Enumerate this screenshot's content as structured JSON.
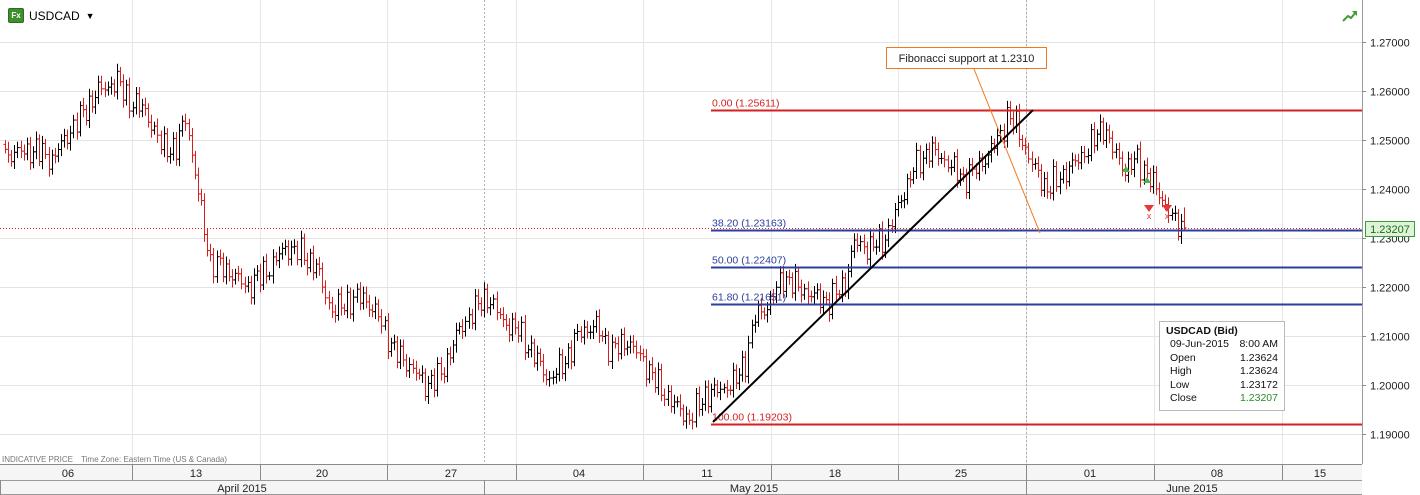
{
  "symbol": "USDCAD",
  "indicative_label": "INDICATIVE PRICE",
  "timezone_label": "Time Zone: Eastern Time (US & Canada)",
  "current_price": "1.23207",
  "callout_text": "Fibonacci support at 1.2310",
  "info_box": {
    "title": "USDCAD (Bid)",
    "date": "09-Jun-2015",
    "time": "8:00 AM",
    "rows": [
      {
        "label": "Open",
        "value": "1.23624"
      },
      {
        "label": "High",
        "value": "1.23624"
      },
      {
        "label": "Low",
        "value": "1.23172"
      },
      {
        "label": "Close",
        "value": "1.23207"
      }
    ]
  },
  "colors": {
    "up_bar": "#000000",
    "down_bar": "#d42020",
    "fib_extreme": "#d42020",
    "fib_mid": "#2c3e9e",
    "callout": "#f0781e",
    "price_tag": "#dff3d8",
    "trend_icon": "#3f9f2f"
  },
  "chart_data": {
    "type": "ohlc",
    "symbol": "USDCAD",
    "timeframe": "4-hour bars",
    "y_ticks": [
      "1.27000",
      "1.26000",
      "1.25000",
      "1.24000",
      "1.23000",
      "1.22000",
      "1.21000",
      "1.20000",
      "1.19000"
    ],
    "ylim": [
      1.186,
      1.2725
    ],
    "x_ticks": [
      "06",
      "13",
      "20",
      "27",
      "04",
      "11",
      "18",
      "25",
      "01",
      "08",
      "15"
    ],
    "months": [
      "April 2015",
      "May 2015",
      "June 2015"
    ],
    "fibonacci": [
      {
        "label": "0.00 (1.25611)",
        "level": 1.25611,
        "color": "#d42020"
      },
      {
        "label": "38.20 (1.23163)",
        "level": 1.23163,
        "color": "#2c3e9e"
      },
      {
        "label": "50.00 (1.22407)",
        "level": 1.22407,
        "color": "#2c3e9e"
      },
      {
        "label": "61.80 (1.21651)",
        "level": 1.21651,
        "color": "#2c3e9e"
      },
      {
        "label": "100.00 (1.19203)",
        "level": 1.19203,
        "color": "#d42020"
      }
    ],
    "current_price": 1.23207,
    "swing_low": 1.19203,
    "swing_high": 1.25611,
    "close_anchors": [
      [
        0,
        1.247
      ],
      [
        10,
        1.248
      ],
      [
        15,
        1.246
      ],
      [
        20,
        1.251
      ],
      [
        30,
        1.26
      ],
      [
        36,
        1.262
      ],
      [
        40,
        1.258
      ],
      [
        45,
        1.256
      ],
      [
        50,
        1.249
      ],
      [
        55,
        1.248
      ],
      [
        58,
        1.255
      ],
      [
        62,
        1.239
      ],
      [
        66,
        1.225
      ],
      [
        70,
        1.224
      ],
      [
        78,
        1.22
      ],
      [
        85,
        1.224
      ],
      [
        90,
        1.228
      ],
      [
        95,
        1.227
      ],
      [
        100,
        1.224
      ],
      [
        105,
        1.215
      ],
      [
        110,
        1.217
      ],
      [
        115,
        1.218
      ],
      [
        120,
        1.214
      ],
      [
        125,
        1.207
      ],
      [
        130,
        1.204
      ],
      [
        135,
        1.2
      ],
      [
        140,
        1.202
      ],
      [
        145,
        1.21
      ],
      [
        150,
        1.215
      ],
      [
        155,
        1.218
      ],
      [
        160,
        1.213
      ],
      [
        165,
        1.211
      ],
      [
        170,
        1.206
      ],
      [
        175,
        1.201
      ],
      [
        180,
        1.205
      ],
      [
        185,
        1.211
      ],
      [
        190,
        1.212
      ],
      [
        195,
        1.207
      ],
      [
        200,
        1.209
      ],
      [
        205,
        1.205
      ],
      [
        210,
        1.2
      ],
      [
        215,
        1.196
      ],
      [
        220,
        1.193
      ],
      [
        225,
        1.198
      ],
      [
        230,
        1.199
      ],
      [
        235,
        1.201
      ],
      [
        238,
        1.205
      ],
      [
        241,
        1.214
      ],
      [
        245,
        1.216
      ],
      [
        250,
        1.222
      ],
      [
        255,
        1.22
      ],
      [
        260,
        1.218
      ],
      [
        265,
        1.217
      ],
      [
        270,
        1.221
      ],
      [
        273,
        1.229
      ],
      [
        278,
        1.228
      ],
      [
        283,
        1.23
      ],
      [
        288,
        1.238
      ],
      [
        292,
        1.244
      ],
      [
        297,
        1.248
      ],
      [
        302,
        1.246
      ],
      [
        308,
        1.242
      ],
      [
        312,
        1.244
      ],
      [
        316,
        1.247
      ],
      [
        320,
        1.251
      ],
      [
        322,
        1.255
      ],
      [
        325,
        1.253
      ],
      [
        330,
        1.245
      ],
      [
        335,
        1.24
      ],
      [
        340,
        1.243
      ],
      [
        345,
        1.246
      ],
      [
        350,
        1.25
      ],
      [
        353,
        1.253
      ],
      [
        356,
        1.248
      ],
      [
        360,
        1.244
      ],
      [
        364,
        1.246
      ],
      [
        368,
        1.242
      ],
      [
        372,
        1.238
      ],
      [
        376,
        1.233
      ],
      [
        379,
        1.232
      ]
    ]
  }
}
